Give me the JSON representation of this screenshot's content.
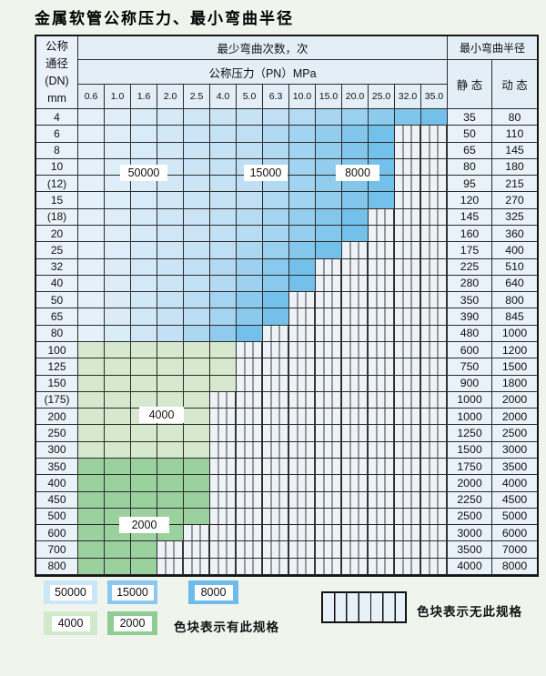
{
  "title": "金属软管公称压力、最小弯曲半径",
  "palette": {
    "blue_light": "#e4f1fa",
    "blue_mid": "#c0dff4",
    "blue_dark": "#73c0ea",
    "green_pale": "#d6e8ce",
    "green_mid": "#9bd09f",
    "swatch_50000": "#cbe6f8",
    "swatch_15000": "#8ac8f0",
    "swatch_8000": "#6dbce9",
    "swatch_4000": "#d2e8ca",
    "swatch_2000": "#8fcb93"
  },
  "table": {
    "header": {
      "dn_lines": [
        "公称",
        "通径",
        "(DN)",
        "mm"
      ],
      "bend_cycles": "最少弯曲次数，次",
      "pressure_title": "公称压力（PN）MPa",
      "min_radius": "最小弯曲半径",
      "static_label": "静 态",
      "dynamic_label": "动 态",
      "pressures": [
        "0.6",
        "1.0",
        "1.6",
        "2.0",
        "2.5",
        "4.0",
        "5.0",
        "6.3",
        "10.0",
        "15.0",
        "20.0",
        "25.0",
        "32.0",
        "35.0"
      ]
    },
    "rows": [
      {
        "dn": "4",
        "colored_cols": 14,
        "palette": "blue",
        "static": "35",
        "dynamic": "80"
      },
      {
        "dn": "6",
        "colored_cols": 12,
        "palette": "blue",
        "static": "50",
        "dynamic": "110"
      },
      {
        "dn": "8",
        "colored_cols": 12,
        "palette": "blue",
        "static": "65",
        "dynamic": "145"
      },
      {
        "dn": "10",
        "colored_cols": 12,
        "palette": "blue",
        "static": "80",
        "dynamic": "180"
      },
      {
        "dn": "(12)",
        "colored_cols": 12,
        "palette": "blue",
        "static": "95",
        "dynamic": "215"
      },
      {
        "dn": "15",
        "colored_cols": 12,
        "palette": "blue",
        "static": "120",
        "dynamic": "270"
      },
      {
        "dn": "(18)",
        "colored_cols": 11,
        "palette": "blue",
        "static": "145",
        "dynamic": "325"
      },
      {
        "dn": "20",
        "colored_cols": 11,
        "palette": "blue",
        "static": "160",
        "dynamic": "360"
      },
      {
        "dn": "25",
        "colored_cols": 10,
        "palette": "blue",
        "static": "175",
        "dynamic": "400"
      },
      {
        "dn": "32",
        "colored_cols": 9,
        "palette": "blue",
        "static": "225",
        "dynamic": "510"
      },
      {
        "dn": "40",
        "colored_cols": 9,
        "palette": "blue",
        "static": "280",
        "dynamic": "640"
      },
      {
        "dn": "50",
        "colored_cols": 8,
        "palette": "blue",
        "static": "350",
        "dynamic": "800"
      },
      {
        "dn": "65",
        "colored_cols": 8,
        "palette": "blue",
        "static": "390",
        "dynamic": "845"
      },
      {
        "dn": "80",
        "colored_cols": 7,
        "palette": "blue",
        "static": "480",
        "dynamic": "1000"
      },
      {
        "dn": "100",
        "colored_cols": 6,
        "palette": "green1",
        "static": "600",
        "dynamic": "1200"
      },
      {
        "dn": "125",
        "colored_cols": 6,
        "palette": "green1",
        "static": "750",
        "dynamic": "1500"
      },
      {
        "dn": "150",
        "colored_cols": 6,
        "palette": "green1",
        "static": "900",
        "dynamic": "1800"
      },
      {
        "dn": "(175)",
        "colored_cols": 5,
        "palette": "green1",
        "static": "1000",
        "dynamic": "2000"
      },
      {
        "dn": "200",
        "colored_cols": 5,
        "palette": "green1",
        "static": "1000",
        "dynamic": "2000"
      },
      {
        "dn": "250",
        "colored_cols": 5,
        "palette": "green1",
        "static": "1250",
        "dynamic": "2500"
      },
      {
        "dn": "300",
        "colored_cols": 5,
        "palette": "green1",
        "static": "1500",
        "dynamic": "3000"
      },
      {
        "dn": "350",
        "colored_cols": 5,
        "palette": "green2",
        "static": "1750",
        "dynamic": "3500"
      },
      {
        "dn": "400",
        "colored_cols": 5,
        "palette": "green2",
        "static": "2000",
        "dynamic": "4000"
      },
      {
        "dn": "450",
        "colored_cols": 5,
        "palette": "green2",
        "static": "2250",
        "dynamic": "4500"
      },
      {
        "dn": "500",
        "colored_cols": 5,
        "palette": "green2",
        "static": "2500",
        "dynamic": "5000"
      },
      {
        "dn": "600",
        "colored_cols": 4,
        "palette": "green2",
        "static": "3000",
        "dynamic": "6000"
      },
      {
        "dn": "700",
        "colored_cols": 3,
        "palette": "green2",
        "static": "3500",
        "dynamic": "7000"
      },
      {
        "dn": "800",
        "colored_cols": 3,
        "palette": "green2",
        "static": "4000",
        "dynamic": "8000"
      }
    ]
  },
  "cycle_labels": [
    "50000",
    "15000",
    "8000",
    "4000",
    "2000"
  ],
  "legend": {
    "items": [
      "50000",
      "15000",
      "8000",
      "4000",
      "2000"
    ],
    "has_spec": "色块表示有此规格",
    "no_spec": "色块表示无此规格"
  }
}
